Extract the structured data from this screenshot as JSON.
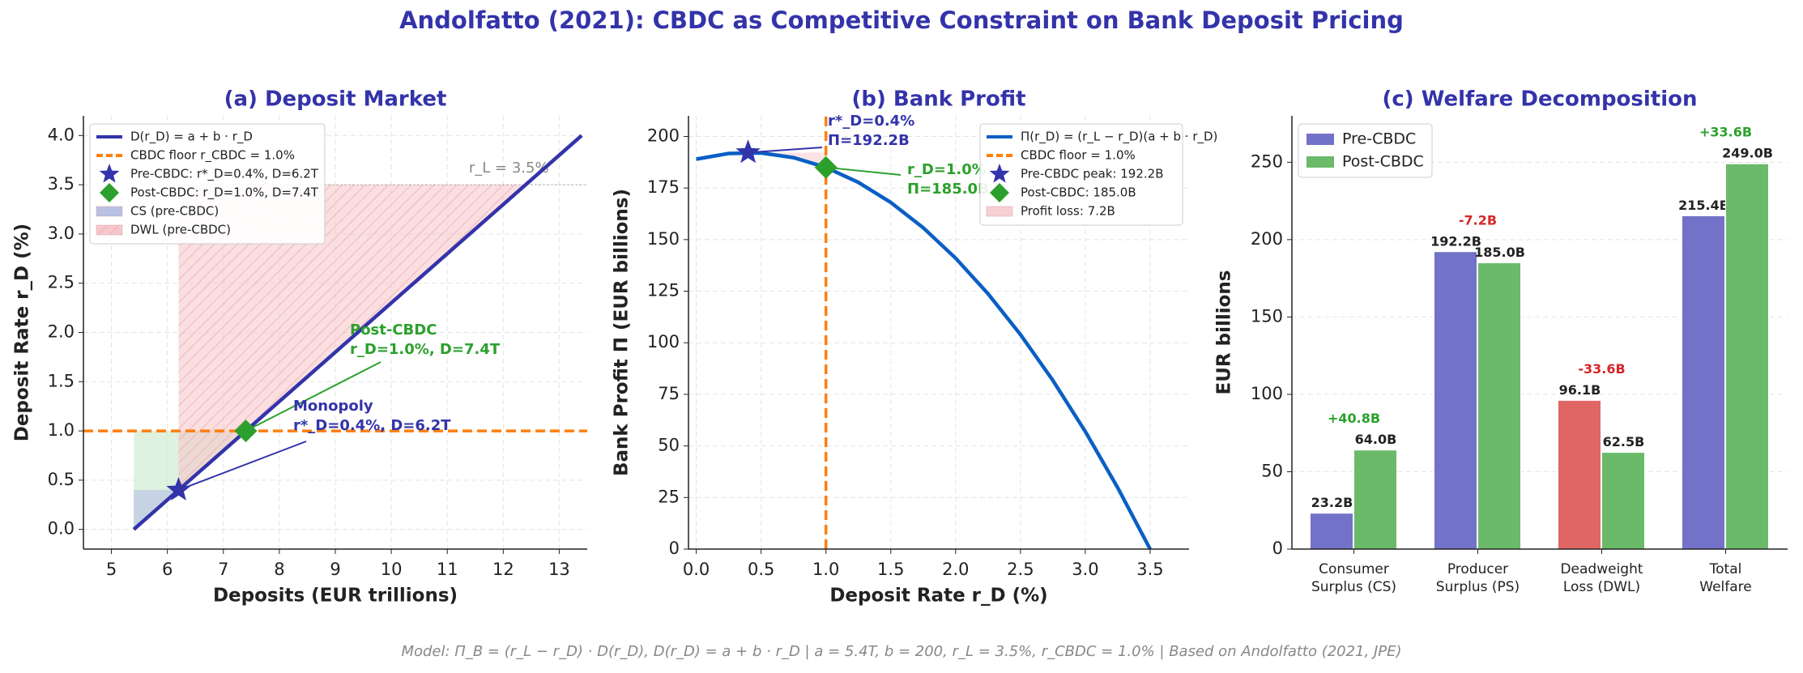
{
  "title": "Andolfatto (2021): CBDC as Competitive Constraint on Bank Deposit Pricing",
  "footnote": "Model: Π_B = (r_L − r_D) · D(r_D), D(r_D) = a + b · r_D | a = 5.4T, b = 200, r_L = 3.5%, r_CBDC = 1.0% | Based on Andolfatto (2021, JPE)",
  "chart_data": [
    {
      "type": "line",
      "title": "(a) Deposit Market",
      "xlabel": "Deposits (EUR trillions)",
      "ylabel": "Deposit Rate r_D (%)",
      "xlim": [
        4.5,
        13.5
      ],
      "ylim": [
        -0.2,
        4.2
      ],
      "xticks": [
        5,
        6,
        7,
        8,
        9,
        10,
        11,
        12,
        13
      ],
      "yticks": [
        {
          "value": 0,
          "label": "0.0"
        },
        {
          "value": 0.5,
          "label": "0.5"
        },
        {
          "value": 1,
          "label": "1.0"
        },
        {
          "value": 1.5,
          "label": "1.5"
        },
        {
          "value": 2,
          "label": "2.0"
        },
        {
          "value": 2.5,
          "label": "2.5"
        },
        {
          "value": 3,
          "label": "3.0"
        },
        {
          "value": 3.5,
          "label": "3.5"
        },
        {
          "value": 4,
          "label": "4.0"
        }
      ],
      "grid": true,
      "legend": "upper left",
      "series": [
        {
          "name": "D(r_D) = a + b · r_D",
          "color": "#3333aa",
          "x": [
            5.4,
            13.4
          ],
          "values": [
            0,
            4.0
          ]
        },
        {
          "name": "CBDC floor r_CBDC = 1.0%",
          "color": "#ff7f0e",
          "style": "dashed",
          "x": [
            4.5,
            13.5
          ],
          "values": [
            1.0,
            1.0
          ]
        },
        {
          "name": "Pre-CBDC: r*_D=0.4%, D=6.2T",
          "color": "#3333aa",
          "marker": "star",
          "x": [
            6.2
          ],
          "values": [
            0.4
          ]
        },
        {
          "name": "Post-CBDC: r_D=1.0%, D=7.4T",
          "color": "#2ca02c",
          "marker": "diamond",
          "x": [
            7.4
          ],
          "values": [
            1.0
          ]
        }
      ],
      "areas": [
        {
          "color": "#c9e8c9",
          "x": [
            5.4,
            7.4,
            5.4
          ],
          "values": [
            0,
            1.0,
            1.0
          ]
        },
        {
          "name": "CS (pre-CBDC)",
          "color": "#b8c0e4",
          "x": [
            5.4,
            6.2,
            5.4
          ],
          "values": [
            0,
            0.4,
            0.4
          ]
        },
        {
          "name": "DWL (pre-CBDC)",
          "color": "#f6c8cc",
          "hatch": true,
          "x": [
            6.2,
            12.4,
            6.2
          ],
          "values": [
            0.4,
            3.5,
            3.5
          ]
        }
      ],
      "hlines": [
        {
          "value": 3.5,
          "label": "r_L = 3.5%"
        }
      ],
      "annotations": [
        {
          "lines": [
            "Post-CBDC",
            "r_D=1.0%, D=7.4T"
          ],
          "color": "#2ca02c"
        },
        {
          "lines": [
            "Monopoly",
            "r*_D=0.4%, D=6.2T"
          ],
          "color": "#3333aa"
        }
      ]
    },
    {
      "type": "line",
      "title": "(b) Bank Profit",
      "xlabel": "Deposit Rate r_D (%)",
      "ylabel": "Bank Profit Π (EUR billions)",
      "xlim": [
        -0.06,
        3.8
      ],
      "ylim": [
        0,
        210
      ],
      "xticks": [
        {
          "value": 0,
          "label": "0.0"
        },
        0.5,
        {
          "value": 1,
          "label": "1.0"
        },
        1.5,
        {
          "value": 2,
          "label": "2.0"
        },
        2.5,
        {
          "value": 3,
          "label": "3.0"
        },
        3.5
      ],
      "yticks": [
        0,
        25,
        50,
        75,
        100,
        125,
        150,
        175,
        200
      ],
      "grid": true,
      "legend": "upper right",
      "series": [
        {
          "name": "Π(r_D) = (r_L − r_D)(a + b · r_D)",
          "color": "#0a5fc4",
          "x": [
            0,
            0.25,
            0.5,
            0.75,
            1.0,
            1.25,
            1.5,
            1.75,
            2.0,
            2.25,
            2.5,
            2.75,
            3.0,
            3.25,
            3.5
          ],
          "values": [
            189,
            191.75,
            192,
            189.75,
            185,
            177.75,
            168,
            155.75,
            141,
            123.75,
            104,
            81.75,
            57,
            29.75,
            0
          ]
        },
        {
          "name": "CBDC floor = 1.0%",
          "color": "#ff7f0e",
          "style": "dashed",
          "x": [
            1.0,
            1.0
          ],
          "values": [
            0,
            210
          ]
        },
        {
          "name": "Pre-CBDC peak: 192.2B",
          "color": "#3333aa",
          "marker": "star",
          "x": [
            0.4
          ],
          "values": [
            192.2
          ]
        },
        {
          "name": "Post-CBDC: 185.0B",
          "color": "#2ca02c",
          "marker": "diamond",
          "x": [
            1.0
          ],
          "values": [
            185.0
          ]
        }
      ],
      "areas": [
        {
          "name": "Profit loss: 7.2B",
          "color": "#f8d0d4",
          "x": [
            0.4,
            0.5,
            0.75,
            1.0,
            1.0
          ],
          "values": [
            192.2,
            192,
            189.75,
            185,
            192.2
          ]
        }
      ],
      "annotations": [
        {
          "lines": [
            "r*_D=0.4%",
            "Π=192.2B"
          ],
          "color": "#3333aa"
        },
        {
          "lines": [
            "r_D=1.0%",
            "Π=185.0B"
          ],
          "color": "#2ca02c"
        }
      ]
    },
    {
      "type": "bar",
      "title": "(c) Welfare Decomposition",
      "ylabel": "EUR billions",
      "categories": [
        [
          "Consumer",
          "Surplus (CS)"
        ],
        [
          "Producer",
          "Surplus (PS)"
        ],
        [
          "Deadweight",
          "Loss (DWL)"
        ],
        [
          "Total",
          "Welfare"
        ]
      ],
      "ylim": [
        0,
        280
      ],
      "yticks": [
        0,
        50,
        100,
        150,
        200,
        250
      ],
      "grid": true,
      "legend": "upper left",
      "series": [
        {
          "name": "Pre-CBDC",
          "color": "#7272c8",
          "colors": [
            "#7272c8",
            "#7272c8",
            "#e06666",
            "#7272c8"
          ],
          "values": [
            23.2,
            192.2,
            96.1,
            215.4
          ],
          "value_labels": [
            "23.2B",
            "192.2B",
            "96.1B",
            "215.4B"
          ]
        },
        {
          "name": "Post-CBDC",
          "color": "#6aba6a",
          "values": [
            64.0,
            185.0,
            62.5,
            249.0
          ],
          "value_labels": [
            "64.0B",
            "185.0B",
            "62.5B",
            "249.0B"
          ]
        }
      ],
      "changes": {
        "values": [
          40.8,
          -7.2,
          -33.6,
          33.6
        ],
        "value_labels": [
          "+40.8B",
          "-7.2B",
          "-33.6B",
          "+33.6B"
        ],
        "colors": {
          "up": "#2ca02c",
          "down": "#d62728"
        }
      }
    }
  ]
}
